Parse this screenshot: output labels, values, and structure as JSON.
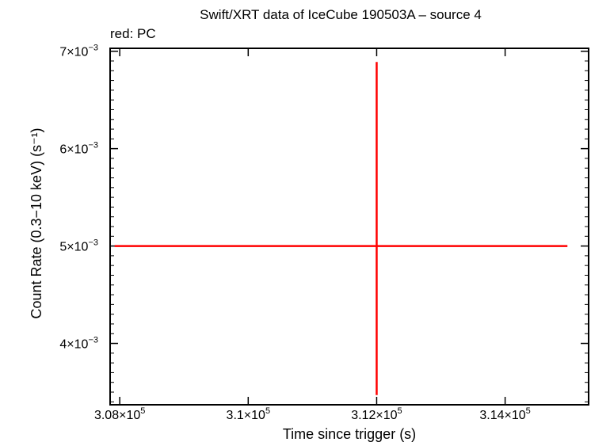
{
  "chart_data": {
    "type": "scatter",
    "title": "Swift/XRT data of IceCube 190503A – source 4",
    "subtitle": "red: PC",
    "xlabel": "Time since trigger (s)",
    "ylabel": "Count Rate (0.3−10 keV) (s⁻¹)",
    "xlim": [
      307850,
      315300
    ],
    "ylim": [
      0.00337,
      0.00703
    ],
    "grid": false,
    "x_ticks": [
      {
        "value": 308000,
        "mant": "3.08",
        "exp": "5"
      },
      {
        "value": 310000,
        "mant": "3.1",
        "exp": "5"
      },
      {
        "value": 312000,
        "mant": "3.12",
        "exp": "5"
      },
      {
        "value": 314000,
        "mant": "3.14",
        "exp": "5"
      }
    ],
    "y_ticks": [
      {
        "value": 0.004,
        "mant": "4",
        "exp": "−3"
      },
      {
        "value": 0.005,
        "mant": "5",
        "exp": "−3"
      },
      {
        "value": 0.006,
        "mant": "6",
        "exp": "−3"
      },
      {
        "value": 0.007,
        "mant": "7",
        "exp": "−3"
      }
    ],
    "series": [
      {
        "name": "PC",
        "color": "#ff0000",
        "points": [
          {
            "x": 312000,
            "y": 0.005,
            "xerr_low": 4080,
            "xerr_high": 2970,
            "yerr_low": 0.00153,
            "yerr_high": 0.00189
          }
        ]
      }
    ]
  }
}
